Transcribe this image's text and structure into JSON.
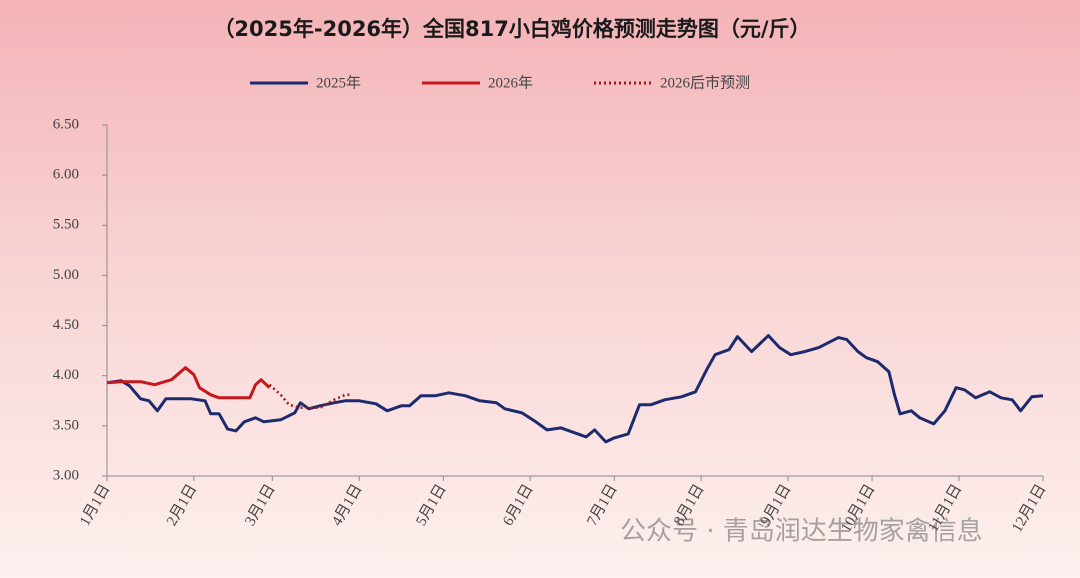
{
  "chart_data": {
    "type": "line",
    "title": "（2025年-2026年）全国817小白鸡价格预测走势图（元/斤）",
    "watermark": "公众号 · 青岛润达生物家禽信息",
    "xlim": [
      1,
      335
    ],
    "xticks": [
      {
        "value": 1,
        "label": "1月1日"
      },
      {
        "value": 32,
        "label": "2月1日"
      },
      {
        "value": 60,
        "label": "3月1日"
      },
      {
        "value": 91,
        "label": "4月1日"
      },
      {
        "value": 121,
        "label": "5月1日"
      },
      {
        "value": 152,
        "label": "6月1日"
      },
      {
        "value": 182,
        "label": "7月1日"
      },
      {
        "value": 213,
        "label": "8月1日"
      },
      {
        "value": 244,
        "label": "9月1日"
      },
      {
        "value": 274,
        "label": "10月1日"
      },
      {
        "value": 305,
        "label": "11月1日"
      },
      {
        "value": 335,
        "label": "12月1日"
      }
    ],
    "ylim": [
      3,
      6.5
    ],
    "yticks": [
      {
        "value": 3,
        "label": "3.00"
      },
      {
        "value": 3.5,
        "label": "3.50"
      },
      {
        "value": 4,
        "label": "4.00"
      },
      {
        "value": 4.5,
        "label": "4.50"
      },
      {
        "value": 5,
        "label": "5.00"
      },
      {
        "value": 5.5,
        "label": "5.50"
      },
      {
        "value": 6,
        "label": "6.00"
      },
      {
        "value": 6.5,
        "label": "6.50"
      }
    ],
    "grid": false,
    "series": [
      {
        "name": "2025年",
        "color": "#1c2a6e",
        "dashed": false,
        "x": [
          1,
          6,
          9,
          13,
          16,
          19,
          22,
          31,
          36,
          38,
          41,
          44,
          47,
          50,
          54,
          57,
          63,
          68,
          70,
          73,
          77,
          82,
          86,
          91,
          97,
          101,
          106,
          109,
          113,
          118,
          123,
          129,
          134,
          140,
          143,
          149,
          154,
          158,
          163,
          168,
          172,
          175,
          179,
          182,
          187,
          191,
          195,
          200,
          206,
          211,
          215,
          218,
          223,
          226,
          231,
          237,
          241,
          245,
          250,
          255,
          262,
          265,
          269,
          272,
          276,
          280,
          282,
          284,
          288,
          291,
          296,
          300,
          304,
          307,
          311,
          316,
          320,
          324,
          327,
          331,
          335
        ],
        "values": [
          3.93,
          3.95,
          3.9,
          3.77,
          3.75,
          3.65,
          3.77,
          3.77,
          3.75,
          3.62,
          3.62,
          3.47,
          3.45,
          3.54,
          3.58,
          3.54,
          3.56,
          3.63,
          3.73,
          3.67,
          3.7,
          3.73,
          3.75,
          3.75,
          3.72,
          3.65,
          3.7,
          3.7,
          3.8,
          3.8,
          3.83,
          3.8,
          3.75,
          3.73,
          3.67,
          3.63,
          3.54,
          3.46,
          3.48,
          3.43,
          3.39,
          3.46,
          3.34,
          3.38,
          3.42,
          3.71,
          3.71,
          3.76,
          3.79,
          3.84,
          4.06,
          4.21,
          4.26,
          4.39,
          4.24,
          4.4,
          4.28,
          4.21,
          4.24,
          4.28,
          4.38,
          4.36,
          4.24,
          4.18,
          4.14,
          4.04,
          3.81,
          3.62,
          3.65,
          3.58,
          3.52,
          3.65,
          3.88,
          3.86,
          3.78,
          3.84,
          3.78,
          3.76,
          3.65,
          3.79,
          3.8
        ]
      },
      {
        "name": "2026年",
        "color": "#c8161d",
        "dashed": false,
        "x": [
          1,
          6,
          13,
          18,
          24,
          29,
          32,
          34,
          38,
          41,
          52,
          54,
          56,
          59
        ],
        "values": [
          3.93,
          3.94,
          3.94,
          3.91,
          3.96,
          4.08,
          4.01,
          3.88,
          3.81,
          3.78,
          3.78,
          3.91,
          3.96,
          3.88
        ]
      },
      {
        "name": "2026后市预测",
        "color": "#9b1b1b",
        "dashed": true,
        "x": [
          59,
          63,
          66,
          70,
          77,
          82,
          86,
          88
        ],
        "values": [
          3.91,
          3.81,
          3.71,
          3.68,
          3.68,
          3.76,
          3.81,
          3.81
        ]
      }
    ]
  }
}
